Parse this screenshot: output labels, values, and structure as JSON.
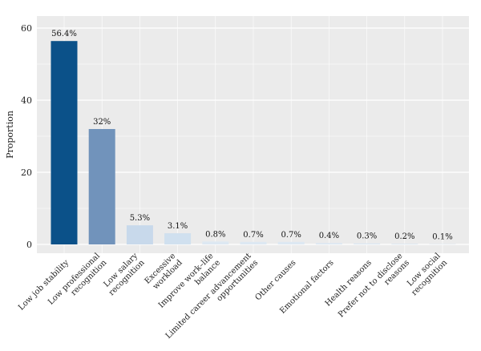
{
  "chart_data": {
    "type": "bar",
    "title": "",
    "xlabel": "",
    "ylabel": "Proportion",
    "ylim": [
      0,
      62
    ],
    "yticks": [
      0,
      20,
      40,
      60
    ],
    "grid": true,
    "categories": [
      [
        "Low job stability"
      ],
      [
        "Low professional",
        "recognition"
      ],
      [
        "Low salary",
        "recognition"
      ],
      [
        "Excessive",
        "workload"
      ],
      [
        "Improve work–life",
        "balance"
      ],
      [
        "Limited career advancement",
        "opportunities"
      ],
      [
        "Other causes"
      ],
      [
        "Emotional factors"
      ],
      [
        "Health reasons"
      ],
      [
        "Prefer not to disclose",
        "reasons"
      ],
      [
        "Low social",
        "recognition"
      ]
    ],
    "values": [
      56.4,
      32,
      5.3,
      3.1,
      0.8,
      0.7,
      0.7,
      0.4,
      0.3,
      0.2,
      0.1
    ],
    "value_labels": [
      "56.4%",
      "32%",
      "5.3%",
      "3.1%",
      "0.8%",
      "0.7%",
      "0.7%",
      "0.4%",
      "0.3%",
      "0.2%",
      "0.1%"
    ],
    "colors": [
      "#0b5189",
      "#7193bb",
      "#c8d9eb",
      "#d0e0ef",
      "#dde8f2",
      "#dde8f2",
      "#dde8f2",
      "#dde8f2",
      "#dde8f2",
      "#dde8f2",
      "#dde8f2"
    ],
    "plot_background": "#ebebeb",
    "grid_color": "#ffffff"
  }
}
